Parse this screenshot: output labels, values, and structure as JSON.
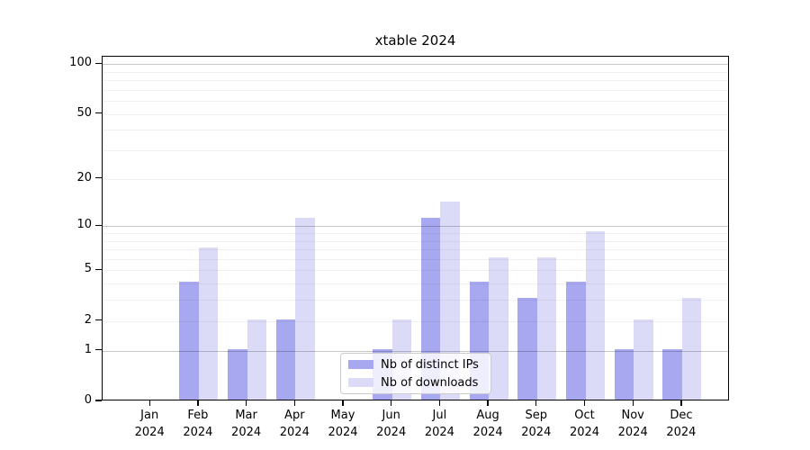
{
  "chart_data": {
    "type": "bar",
    "title": "xtable 2024",
    "categories": [
      "Jan",
      "Feb",
      "Mar",
      "Apr",
      "May",
      "Jun",
      "Jul",
      "Aug",
      "Sep",
      "Oct",
      "Nov",
      "Dec"
    ],
    "category_year": "2024",
    "series": [
      {
        "name": "Nb of distinct IPs",
        "color": "#a8a8f0",
        "values": [
          0,
          4,
          1,
          2,
          0,
          1,
          11,
          4,
          3,
          4,
          1,
          1
        ]
      },
      {
        "name": "Nb of downloads",
        "color": "#dbdbf8",
        "values": [
          0,
          7,
          2,
          11,
          0,
          2,
          14,
          6,
          6,
          9,
          2,
          3
        ]
      }
    ],
    "xlabel": "",
    "ylabel": "",
    "yscale": "log1p",
    "ylim": [
      0,
      110
    ],
    "ytick_labels": [
      "100",
      "50",
      "20",
      "10",
      "5",
      "2",
      "1",
      "0"
    ],
    "yticks": [
      100,
      50,
      20,
      10,
      5,
      2,
      1,
      0
    ],
    "gridlines": {
      "major": [
        1,
        10,
        100
      ],
      "minor": [
        2,
        3,
        4,
        5,
        6,
        7,
        8,
        9,
        20,
        30,
        40,
        50,
        60,
        70,
        80,
        90
      ]
    },
    "grid": true,
    "legend": {
      "position": "lower-center",
      "entries": [
        "Nb of distinct IPs",
        "Nb of downloads"
      ]
    }
  }
}
